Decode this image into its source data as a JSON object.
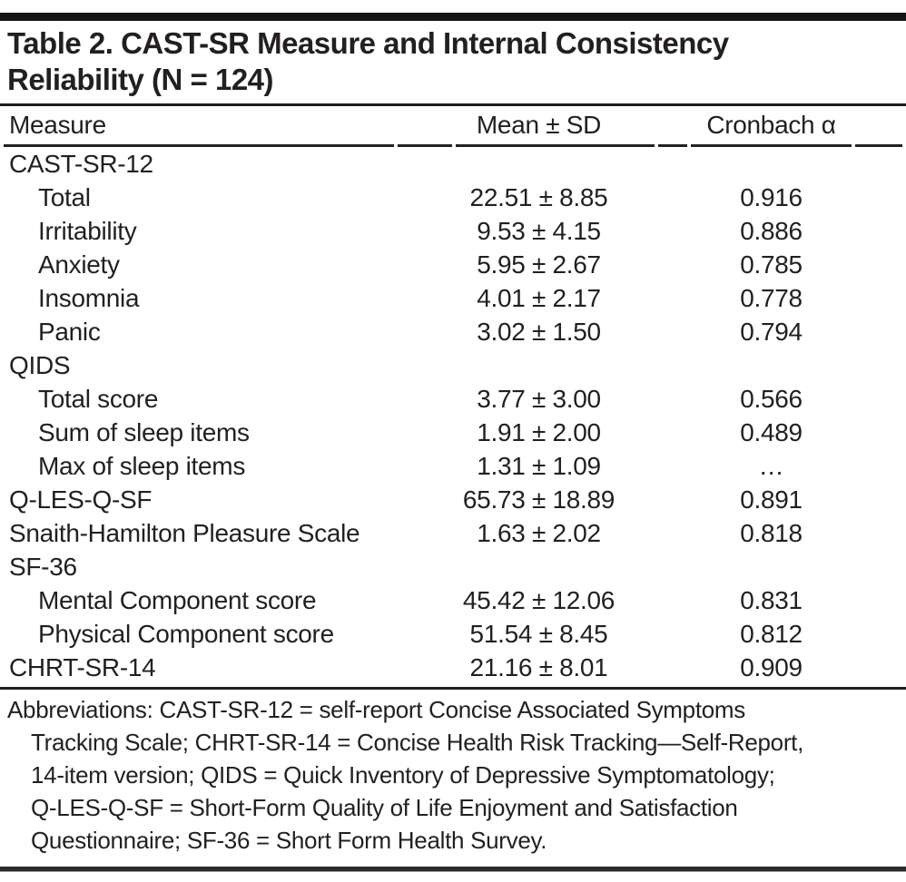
{
  "table": {
    "title_lines": [
      "Table 2. CAST-SR Measure and Internal Consistency",
      "Reliability (N = 124)"
    ],
    "columns": [
      "Measure",
      "Mean ± SD",
      "Cronbach α"
    ],
    "rows": [
      {
        "label": "CAST-SR-12",
        "indent": false,
        "mean": "",
        "alpha": ""
      },
      {
        "label": "Total",
        "indent": true,
        "mean": "22.51 ± 8.85",
        "alpha": "0.916"
      },
      {
        "label": "Irritability",
        "indent": true,
        "mean": "9.53 ± 4.15",
        "alpha": "0.886"
      },
      {
        "label": "Anxiety",
        "indent": true,
        "mean": "5.95 ± 2.67",
        "alpha": "0.785"
      },
      {
        "label": "Insomnia",
        "indent": true,
        "mean": "4.01 ± 2.17",
        "alpha": "0.778"
      },
      {
        "label": "Panic",
        "indent": true,
        "mean": "3.02 ± 1.50",
        "alpha": "0.794"
      },
      {
        "label": "QIDS",
        "indent": false,
        "mean": "",
        "alpha": ""
      },
      {
        "label": "Total score",
        "indent": true,
        "mean": "3.77 ± 3.00",
        "alpha": "0.566"
      },
      {
        "label": "Sum of sleep items",
        "indent": true,
        "mean": "1.91 ± 2.00",
        "alpha": "0.489"
      },
      {
        "label": "Max of sleep items",
        "indent": true,
        "mean": "1.31 ± 1.09",
        "alpha": "…"
      },
      {
        "label": "Q-LES-Q-SF",
        "indent": false,
        "mean": "65.73 ± 18.89",
        "alpha": "0.891"
      },
      {
        "label": "Snaith-Hamilton Pleasure Scale",
        "indent": false,
        "mean": "1.63 ± 2.02",
        "alpha": "0.818"
      },
      {
        "label": "SF-36",
        "indent": false,
        "mean": "",
        "alpha": ""
      },
      {
        "label": "Mental Component score",
        "indent": true,
        "mean": "45.42 ± 12.06",
        "alpha": "0.831"
      },
      {
        "label": "Physical Component score",
        "indent": true,
        "mean": "51.54 ± 8.45",
        "alpha": "0.812"
      },
      {
        "label": "CHRT-SR-14",
        "indent": false,
        "mean": "21.16 ± 8.01",
        "alpha": "0.909"
      }
    ]
  },
  "footnote": {
    "lines": [
      "Abbreviations: CAST-SR-12 = self-report Concise Associated Symptoms",
      "Tracking Scale; CHRT-SR-14 = Concise Health Risk Tracking—Self-Report,",
      "14-item version; QIDS = Quick Inventory of Depressive Symptomatology;",
      "Q-LES-Q-SF = Short-Form Quality of Life Enjoyment and Satisfaction",
      "Questionnaire; SF-36 = Short Form Health Survey."
    ]
  },
  "colors": {
    "text": "#231f20",
    "rule": "#1d1d1d"
  }
}
